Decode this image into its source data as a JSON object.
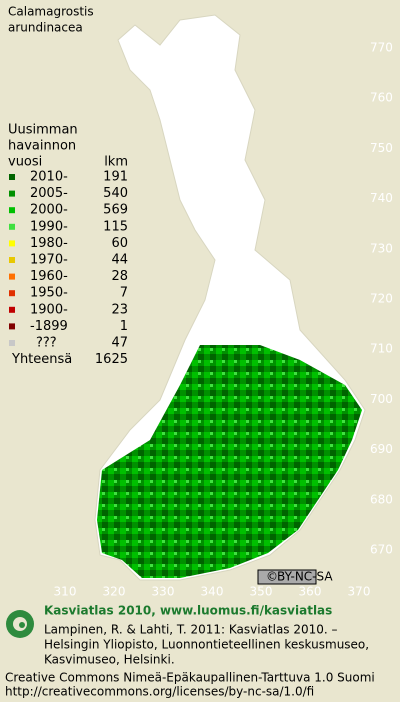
{
  "title": [
    "Calamagrostis",
    "arundinacea"
  ],
  "legend": {
    "header": [
      "Uusimman",
      "havainnon",
      "vuosi"
    ],
    "count_header": "lkm",
    "entries": [
      {
        "label": "2010-",
        "count": 191,
        "color": "#006400"
      },
      {
        "label": "2005-",
        "count": 540,
        "color": "#009000"
      },
      {
        "label": "2000-",
        "count": 569,
        "color": "#00c000"
      },
      {
        "label": "1990-",
        "count": 115,
        "color": "#40e040"
      },
      {
        "label": "1980-",
        "count": 60,
        "color": "#ffff00"
      },
      {
        "label": "1970-",
        "count": 44,
        "color": "#e8c800"
      },
      {
        "label": "1960-",
        "count": 28,
        "color": "#ff7000"
      },
      {
        "label": "1950-",
        "count": 7,
        "color": "#e03000"
      },
      {
        "label": "1900-",
        "count": 23,
        "color": "#c00000"
      },
      {
        "label": "-1899",
        "count": 1,
        "color": "#800000"
      },
      {
        "label": "???",
        "count": 47,
        "color": "#c8c8c8"
      }
    ],
    "total_label": "Yhteensä",
    "total": 1625
  },
  "grid": {
    "northing": [
      770,
      760,
      750,
      740,
      730,
      720,
      710,
      700,
      690,
      680,
      670
    ],
    "easting": [
      310,
      320,
      330,
      340,
      350,
      360,
      370
    ]
  },
  "license_badge": "BY-NC-SA",
  "footer": {
    "title": "Kasviatlas 2010, www.luomus.fi/kasviatlas",
    "citation": [
      "Lampinen, R. & Lahti, T. 2011: Kasviatlas 2010. –",
      "Helsingin Yliopisto, Luonnontieteellinen keskusmuseo,",
      "Kasvimuseo, Helsinki."
    ],
    "license": [
      "Creative Commons Nimeä-Epäkaupallinen-Tarttuva 1.0 Suomi",
      "http://creativecommons.org/licenses/by-nc-sa/1.0/fi"
    ]
  }
}
